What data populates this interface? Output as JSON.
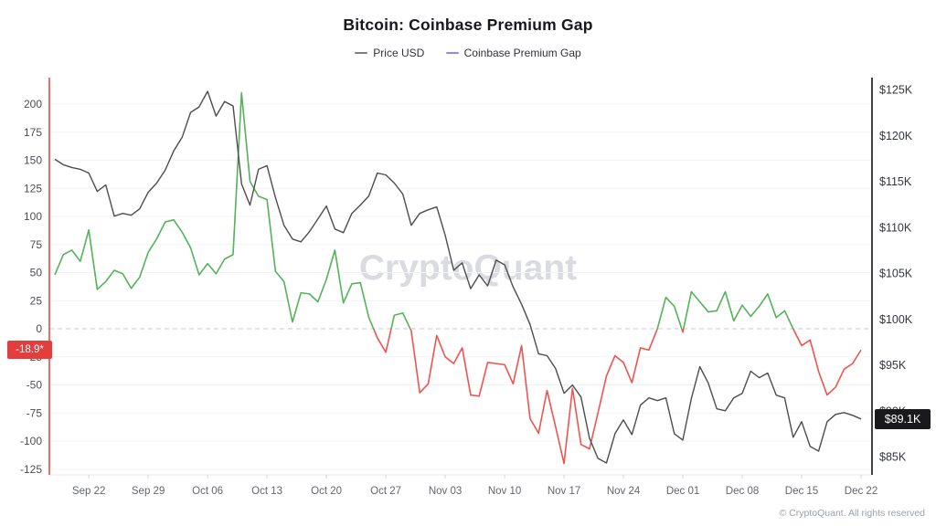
{
  "title": "Bitcoin: Coinbase Premium Gap",
  "watermark": "CryptoQuant",
  "copyright": "© CryptoQuant. All rights reserved",
  "legend": [
    {
      "label": "Price USD",
      "color": "#7c7f87"
    },
    {
      "label": "Coinbase Premium Gap",
      "color": "#8b8df2"
    }
  ],
  "badges": {
    "left": {
      "text": "-18.9*",
      "value": -18.9
    },
    "right": {
      "text": "$89.1K",
      "value": 89.1
    }
  },
  "axes": {
    "left": {
      "ticks": [
        200,
        175,
        150,
        125,
        100,
        75,
        50,
        25,
        0,
        -25,
        -50,
        -75,
        -100,
        -125
      ]
    },
    "right": {
      "labels": [
        "$125K",
        "$120K",
        "$115K",
        "$110K",
        "$105K",
        "$100K",
        "$95K",
        "$90K",
        "$85K"
      ],
      "values": [
        125,
        120,
        115,
        110,
        105,
        100,
        95,
        90,
        85
      ]
    },
    "x": {
      "ticks": [
        "Sep 22",
        "Sep 29",
        "Oct 06",
        "Oct 13",
        "Oct 20",
        "Oct 27",
        "Nov 03",
        "Nov 10",
        "Nov 17",
        "Nov 24",
        "Dec 01",
        "Dec 08",
        "Dec 15",
        "Dec 22"
      ]
    }
  },
  "colors": {
    "price_line": "#4d4d4d",
    "gap_positive": "#54b258",
    "gap_negative": "#ef5350",
    "left_axis": "#ef6b6b",
    "right_axis": "#3f4147",
    "grid": "#f3f3f6",
    "bottom_line": "#e9e9ee",
    "zero_line": "#c7c9d3",
    "tick_mark": "#d5d5da",
    "badge_left_bg": "#e23e3e",
    "badge_right_bg": "#1a1a1d"
  },
  "chart_data": {
    "type": "line",
    "title": "Bitcoin: Coinbase Premium Gap",
    "legend_position": "top",
    "grid": "horizontal-light",
    "zero_reference_line": true,
    "x_interval": "daily",
    "x_start": "Sep 18",
    "x_end": "Dec 22",
    "left_axis_ticks": [
      200,
      175,
      150,
      125,
      100,
      75,
      50,
      25,
      0,
      -25,
      -50,
      -75,
      -100,
      -125
    ],
    "right_axis_ticks_usd_k": [
      125,
      120,
      115,
      110,
      105,
      100,
      95,
      90,
      85
    ],
    "dates": [
      "Sep 18",
      "Sep 19",
      "Sep 20",
      "Sep 21",
      "Sep 22",
      "Sep 23",
      "Sep 24",
      "Sep 25",
      "Sep 26",
      "Sep 27",
      "Sep 28",
      "Sep 29",
      "Sep 30",
      "Oct 01",
      "Oct 02",
      "Oct 03",
      "Oct 04",
      "Oct 05",
      "Oct 06",
      "Oct 07",
      "Oct 08",
      "Oct 09",
      "Oct 10",
      "Oct 11",
      "Oct 12",
      "Oct 13",
      "Oct 14",
      "Oct 15",
      "Oct 16",
      "Oct 17",
      "Oct 18",
      "Oct 19",
      "Oct 20",
      "Oct 21",
      "Oct 22",
      "Oct 23",
      "Oct 24",
      "Oct 25",
      "Oct 26",
      "Oct 27",
      "Oct 28",
      "Oct 29",
      "Oct 30",
      "Oct 31",
      "Nov 01",
      "Nov 02",
      "Nov 03",
      "Nov 04",
      "Nov 05",
      "Nov 06",
      "Nov 07",
      "Nov 08",
      "Nov 09",
      "Nov 10",
      "Nov 11",
      "Nov 12",
      "Nov 13",
      "Nov 14",
      "Nov 15",
      "Nov 16",
      "Nov 17",
      "Nov 18",
      "Nov 19",
      "Nov 20",
      "Nov 21",
      "Nov 22",
      "Nov 23",
      "Nov 24",
      "Nov 25",
      "Nov 26",
      "Nov 27",
      "Nov 28",
      "Nov 29",
      "Nov 30",
      "Dec 01",
      "Dec 02",
      "Dec 03",
      "Dec 04",
      "Dec 05",
      "Dec 06",
      "Dec 07",
      "Dec 08",
      "Dec 09",
      "Dec 10",
      "Dec 11",
      "Dec 12",
      "Dec 13",
      "Dec 14",
      "Dec 15",
      "Dec 16",
      "Dec 17",
      "Dec 18",
      "Dec 19",
      "Dec 20",
      "Dec 21",
      "Dec 22"
    ],
    "series": [
      {
        "name": "Price USD",
        "axis": "right",
        "unit": "USD (thousands)",
        "values": [
          117.4,
          116.8,
          116.5,
          116.3,
          115.9,
          113.9,
          114.6,
          111.2,
          111.5,
          111.3,
          112.0,
          113.8,
          114.8,
          116.2,
          118.3,
          119.8,
          122.5,
          123.1,
          124.8,
          122.1,
          123.7,
          123.2,
          114.7,
          112.4,
          116.3,
          116.7,
          113.2,
          110.2,
          108.7,
          108.4,
          109.5,
          110.9,
          112.3,
          109.8,
          109.4,
          111.5,
          112.4,
          113.4,
          115.9,
          115.7,
          114.8,
          113.6,
          110.2,
          111.5,
          111.9,
          112.2,
          109.1,
          105.3,
          106.1,
          103.3,
          104.8,
          103.6,
          106.4,
          105.9,
          103.5,
          101.6,
          99.4,
          96.2,
          96.0,
          94.6,
          91.9,
          92.8,
          91.5,
          87.0,
          84.8,
          84.3,
          87.5,
          89.0,
          87.4,
          90.6,
          91.4,
          91.1,
          91.4,
          87.5,
          86.8,
          91.3,
          94.8,
          93.0,
          90.2,
          90.0,
          91.4,
          91.9,
          94.3,
          93.6,
          94.1,
          91.7,
          91.4,
          87.1,
          88.8,
          86.1,
          85.6,
          88.8,
          89.6,
          89.8,
          89.5,
          89.1
        ]
      },
      {
        "name": "Coinbase Premium Gap",
        "axis": "left",
        "unit": "USD",
        "last_value": -18.9,
        "values": [
          48,
          66,
          70,
          60,
          88,
          35,
          42,
          52,
          49,
          36,
          46,
          68,
          80,
          95,
          97,
          86,
          72,
          48,
          58,
          49,
          62,
          66,
          210,
          131,
          118,
          115,
          51,
          42,
          6,
          32,
          31,
          24,
          44,
          70,
          23,
          40,
          41,
          10,
          -8,
          -21,
          12,
          14,
          -2,
          -57,
          -49,
          -6,
          -25,
          -31,
          -17,
          -59,
          -60,
          -30,
          -31,
          -32,
          -49,
          -15,
          -80,
          -93,
          -55,
          -87,
          -120,
          -53,
          -103,
          -107,
          -75,
          -42,
          -24,
          -30,
          -48,
          -17,
          -19,
          0,
          28,
          20,
          -3,
          33,
          24,
          15,
          16,
          33,
          7,
          21,
          11,
          20,
          31,
          10,
          16,
          0,
          -15,
          -10,
          -38,
          -59,
          -52,
          -36,
          -31,
          -18.9
        ]
      }
    ]
  }
}
